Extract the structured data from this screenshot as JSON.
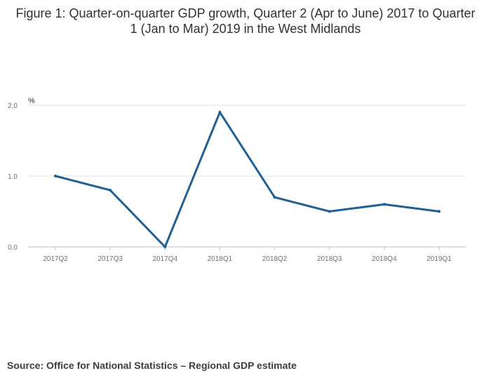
{
  "title": "Figure 1: Quarter-on-quarter GDP growth, Quarter 2 (Apr to June) 2017 to Quarter 1 (Jan to Mar) 2019 in the West Midlands",
  "source": "Source: Office for National Statistics – Regional GDP estimate",
  "colors": {
    "series": "#206095",
    "grid": "#e0e0e0",
    "axis": "#bebebe"
  },
  "chart_data": {
    "type": "line",
    "title": "Figure 1: Quarter-on-quarter GDP growth, Quarter 2 (Apr to June) 2017 to Quarter 1 (Jan to Mar) 2019 in the West Midlands",
    "xlabel": "",
    "ylabel": "%",
    "categories": [
      "2017Q2",
      "2017Q3",
      "2017Q4",
      "2018Q1",
      "2018Q2",
      "2018Q3",
      "2018Q4",
      "2019Q1"
    ],
    "series": [
      {
        "name": "West Midlands",
        "values": [
          1.0,
          0.8,
          0.0,
          1.9,
          0.7,
          0.5,
          0.6,
          0.5
        ]
      }
    ],
    "ylim": [
      0,
      2.0
    ],
    "yticks": [
      0.0,
      1.0,
      2.0
    ],
    "ytick_labels": [
      "0.0",
      "1.0",
      "2.0"
    ],
    "grid": true,
    "legend": "none"
  }
}
